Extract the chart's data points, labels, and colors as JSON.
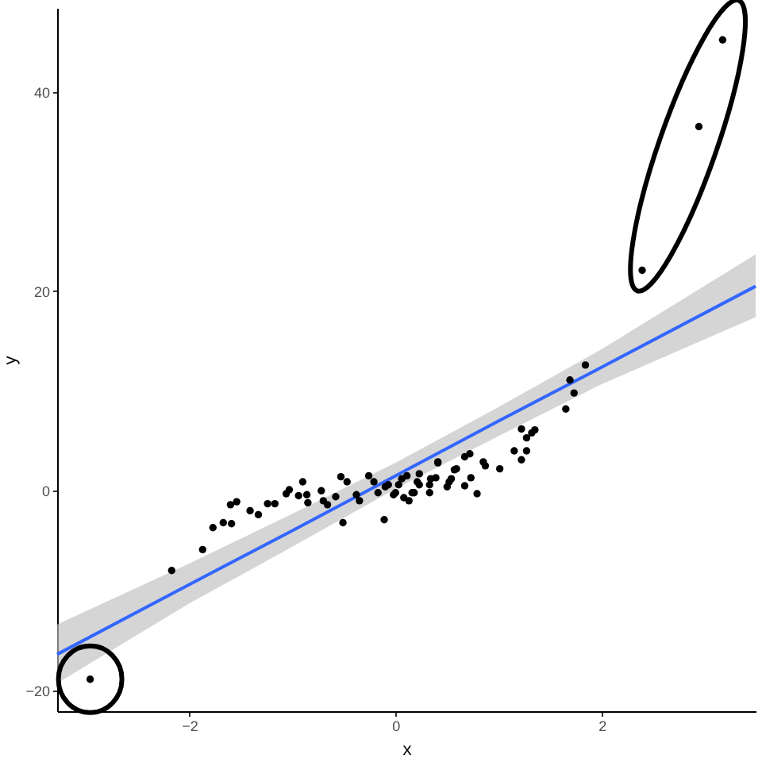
{
  "chart_data": {
    "type": "scatter",
    "xlabel": "x",
    "ylabel": "y",
    "xlim": [
      -3.28,
      3.49
    ],
    "ylim": [
      -22.1,
      48.4
    ],
    "xticks": [
      -2,
      0,
      2
    ],
    "yticks": [
      -20,
      0,
      20,
      40
    ],
    "grid": false,
    "series": [
      {
        "marker": "circle",
        "color": "#000000",
        "x": [
          -2.17,
          -1.87,
          -1.77,
          -1.67,
          -1.59,
          -1.6,
          -1.54,
          -1.41,
          -1.33,
          -1.24,
          -1.17,
          -1.06,
          -1.03,
          -0.9,
          -0.94,
          -0.86,
          -0.85,
          -0.72,
          -0.7,
          -0.66,
          -0.58,
          -0.51,
          -0.53,
          -0.47,
          -0.38,
          -0.35,
          -0.26,
          -0.21,
          -0.11,
          -0.17,
          -0.07,
          -0.02,
          0.06,
          0.08,
          0.16,
          0.23,
          0.23,
          0.34,
          0.41,
          0.52,
          0.59,
          1.84,
          1.69,
          1.73,
          1.65,
          1.35,
          1.32,
          1.22,
          1.27,
          1.15,
          1.27,
          1.22,
          1.01,
          0.85,
          0.87,
          0.72,
          0.67,
          0.73,
          0.67,
          0.79,
          0.57,
          0.54,
          0.5,
          0.41,
          0.39,
          0.33,
          0.33,
          0.21,
          0.18,
          0.13,
          0.11,
          0.03,
          0,
          -0.1,
          3.17,
          2.94,
          2.39,
          -2.96
        ],
        "values": [
          -8.0,
          -5.9,
          -3.7,
          -3.2,
          -3.3,
          -1.4,
          -1.1,
          -2.0,
          -2.4,
          -1.3,
          -1.3,
          -0.3,
          0.1,
          0.9,
          -0.5,
          -0.4,
          -1.2,
          0,
          -1.0,
          -1.4,
          -0.6,
          -3.2,
          1.4,
          0.9,
          -0.4,
          -1.0,
          1.5,
          0.9,
          -2.9,
          -0.2,
          0.6,
          -0.4,
          1.2,
          -0.7,
          -0.2,
          1.7,
          0.6,
          1.2,
          2.8,
          0.9,
          2.2,
          12.6,
          11.1,
          9.8,
          8.2,
          6.1,
          5.8,
          6.2,
          5.3,
          4.0,
          4.0,
          3.1,
          2.2,
          2.9,
          2.5,
          3.7,
          3.4,
          1.3,
          0.5,
          -0.3,
          2.1,
          1.2,
          0.4,
          2.9,
          1.3,
          0.6,
          -0.2,
          0.9,
          -0.2,
          -1.0,
          1.5,
          0.6,
          -0.2,
          0.4,
          45.2,
          36.5,
          22.1,
          -18.9
        ]
      },
      {
        "type": "line",
        "color": "#3366ff",
        "x": [
          -3.28,
          -2,
          -1,
          0,
          1,
          2,
          3.49
        ],
        "values": [
          -16.4,
          -9.4,
          -4.0,
          1.5,
          7.0,
          12.4,
          20.5
        ],
        "lower": [
          -19.3,
          -11.3,
          -5.6,
          0.2,
          5.5,
          10.7,
          17.4
        ],
        "upper": [
          -13.4,
          -7.3,
          -2.3,
          2.8,
          8.4,
          14.2,
          23.7
        ]
      }
    ]
  }
}
